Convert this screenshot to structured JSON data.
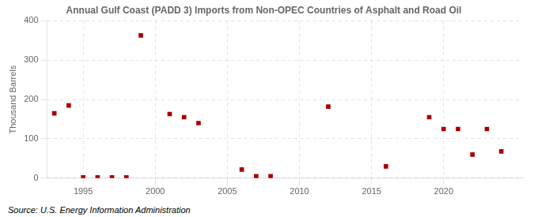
{
  "chart_data": {
    "type": "scatter",
    "title": "Annual Gulf Coast (PADD 3) Imports from Non-OPEC Countries of Asphalt and Road Oil",
    "y_label": "Thousand Barrels",
    "annotation": "Source: U.S. Energy Information Administration",
    "x": [
      1993,
      1994,
      1995,
      1996,
      1997,
      1998,
      1999,
      2001,
      2002,
      2003,
      2006,
      2007,
      2008,
      2012,
      2016,
      2019,
      2020,
      2021,
      2022,
      2023,
      2024
    ],
    "values": [
      165,
      185,
      2,
      2,
      2,
      2,
      363,
      163,
      155,
      140,
      22,
      5,
      5,
      182,
      30,
      155,
      125,
      125,
      60,
      125,
      68
    ],
    "color": "#aa0000",
    "marker": "square",
    "xlim": [
      1992.5,
      2025.5
    ],
    "xticks": [
      1995,
      2000,
      2005,
      2010,
      2015,
      2020
    ],
    "ylim": [
      0,
      400
    ],
    "yticks": [
      0,
      100,
      200,
      300,
      400
    ],
    "grid": true
  }
}
